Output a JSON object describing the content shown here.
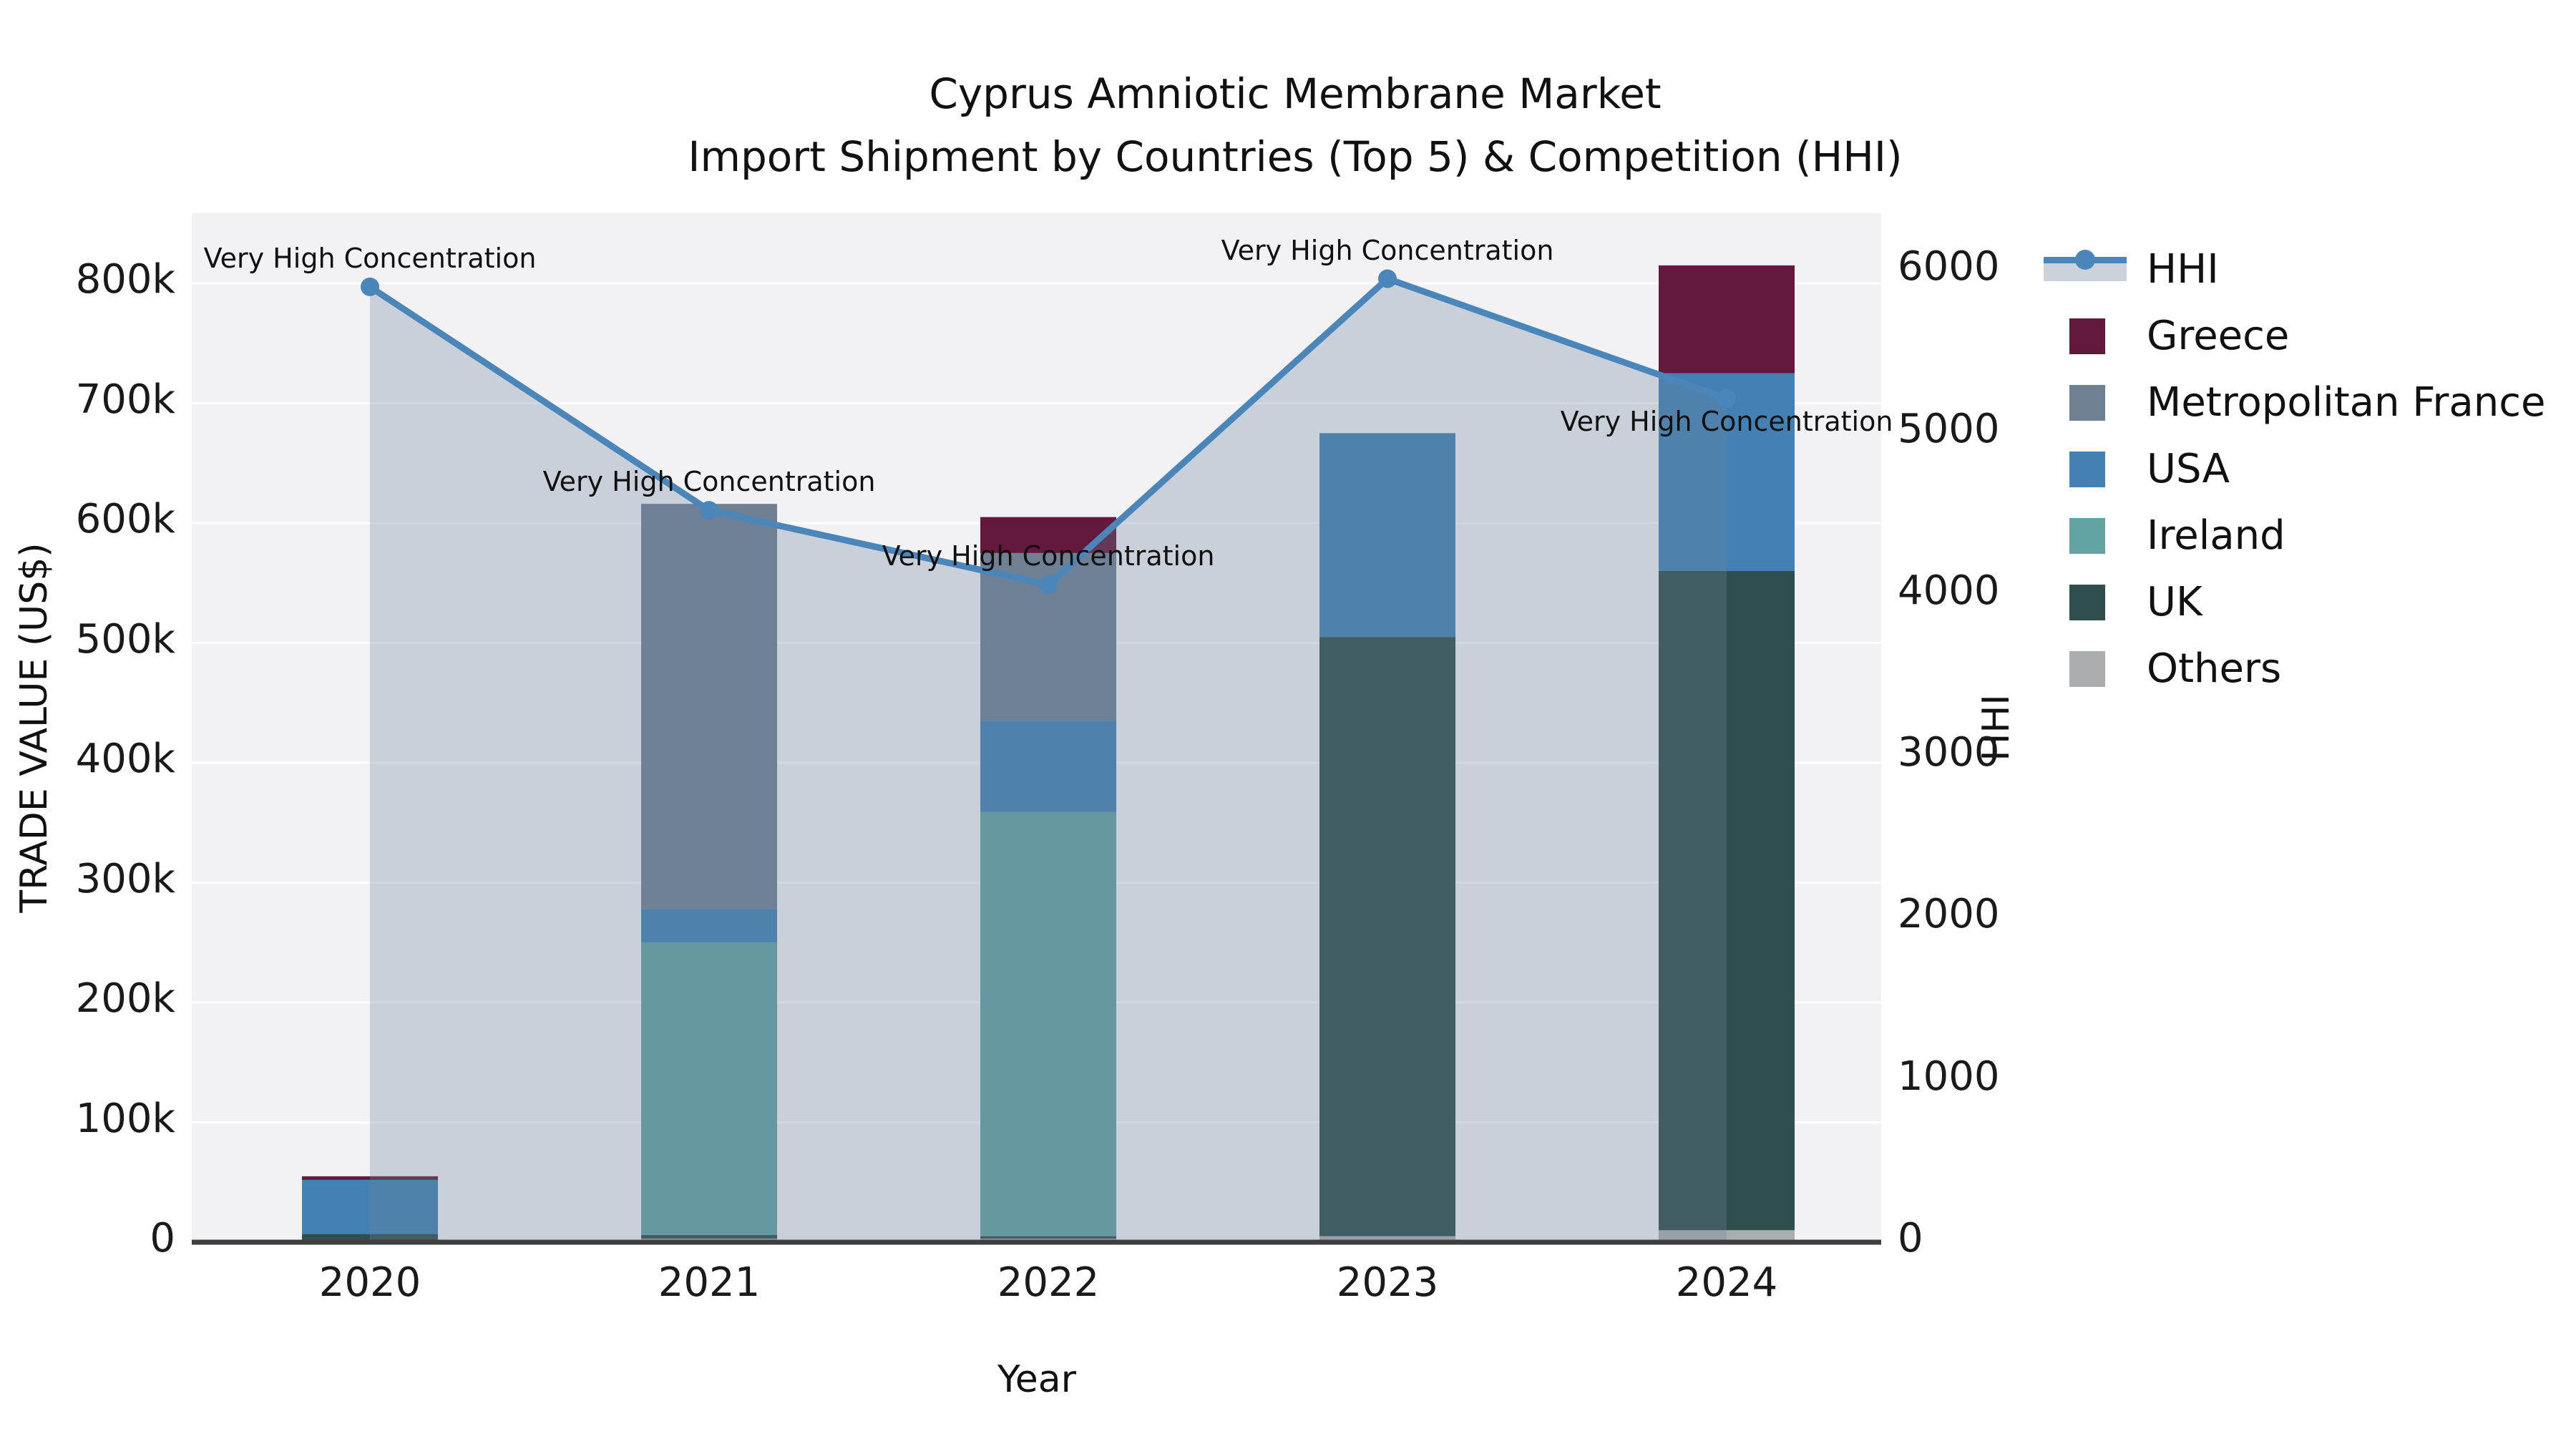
{
  "title": {
    "line1": "Cyprus Amniotic Membrane Market",
    "line2": "Import Shipment by Countries (Top 5) & Competition (HHI)"
  },
  "axes": {
    "x_label": "Year",
    "y_left_label": "TRADE VALUE (US$)",
    "y_right_label": "HHI",
    "x_ticks": [
      "2020",
      "2021",
      "2022",
      "2023",
      "2024"
    ],
    "y_left_ticks": [
      "0",
      "100k",
      "200k",
      "300k",
      "400k",
      "500k",
      "600k",
      "700k",
      "800k"
    ],
    "y_right_ticks": [
      "0",
      "1000",
      "2000",
      "3000",
      "4000",
      "5000",
      "6000"
    ],
    "grid": "horizontal"
  },
  "legend": {
    "position": "right",
    "items": [
      {
        "label": "HHI",
        "type": "line-marker",
        "color": "#4a86ba",
        "band_color": "#ccd2da"
      },
      {
        "label": "Greece",
        "type": "patch",
        "color": "#63193c"
      },
      {
        "label": "Metropolitan France",
        "type": "patch",
        "color": "#6f8093"
      },
      {
        "label": "USA",
        "type": "patch",
        "color": "#4381b5"
      },
      {
        "label": "Ireland",
        "type": "patch",
        "color": "#62a3a3"
      },
      {
        "label": "UK",
        "type": "patch",
        "color": "#2e4f4d"
      },
      {
        "label": "Others",
        "type": "patch",
        "color": "#abaeb1"
      }
    ]
  },
  "annotations": [
    {
      "x": "2020",
      "text": "Very High Concentration",
      "placement": "above"
    },
    {
      "x": "2021",
      "text": "Very High Concentration",
      "placement": "above"
    },
    {
      "x": "2022",
      "text": "Very High Concentration",
      "placement": "above"
    },
    {
      "x": "2023",
      "text": "Very High Concentration",
      "placement": "above"
    },
    {
      "x": "2024",
      "text": "Very High Concentration",
      "placement": "below"
    }
  ],
  "chart_data": {
    "type": "bar",
    "subtype": "stacked-bars-with-secondary-axis-line",
    "title": "Cyprus Amniotic Membrane Market\nImport Shipment by Countries (Top 5) & Competition (HHI)",
    "xlabel": "Year",
    "ylabel_left": "TRADE VALUE (US$)",
    "ylabel_right": "HHI",
    "ylim_left": [
      0,
      860000
    ],
    "ylim_right": [
      0,
      6150
    ],
    "categories": [
      2020,
      2021,
      2022,
      2023,
      2024
    ],
    "series": [
      {
        "name": "Others",
        "axis": "left",
        "color": "#abaeb1",
        "values": [
          2000,
          3000,
          3000,
          5000,
          10000
        ]
      },
      {
        "name": "UK",
        "axis": "left",
        "color": "#2e4f4d",
        "values": [
          5000,
          3000,
          2000,
          500000,
          550000
        ]
      },
      {
        "name": "Ireland",
        "axis": "left",
        "color": "#62a3a3",
        "values": [
          0,
          244000,
          354000,
          0,
          0
        ]
      },
      {
        "name": "USA",
        "axis": "left",
        "color": "#4381b5",
        "values": [
          45000,
          28000,
          76000,
          170000,
          165000
        ]
      },
      {
        "name": "Metropolitan France",
        "axis": "left",
        "color": "#6f8093",
        "values": [
          0,
          338000,
          140000,
          0,
          0
        ]
      },
      {
        "name": "Greece",
        "axis": "left",
        "color": "#63193c",
        "values": [
          3000,
          0,
          30000,
          0,
          90000
        ]
      }
    ],
    "line_series": {
      "name": "HHI",
      "axis": "right",
      "color": "#4a86ba",
      "fill_color": "rgba(110,130,155,0.30)",
      "marker": "circle",
      "values": [
        5900,
        4520,
        4060,
        5950,
        5210
      ]
    },
    "totals_left": [
      55000,
      616000,
      605000,
      675000,
      815000
    ],
    "plot_bg": "#f2f2f4",
    "grid_color": "#ffffff",
    "axis_line_color": "#3f3f3f"
  }
}
